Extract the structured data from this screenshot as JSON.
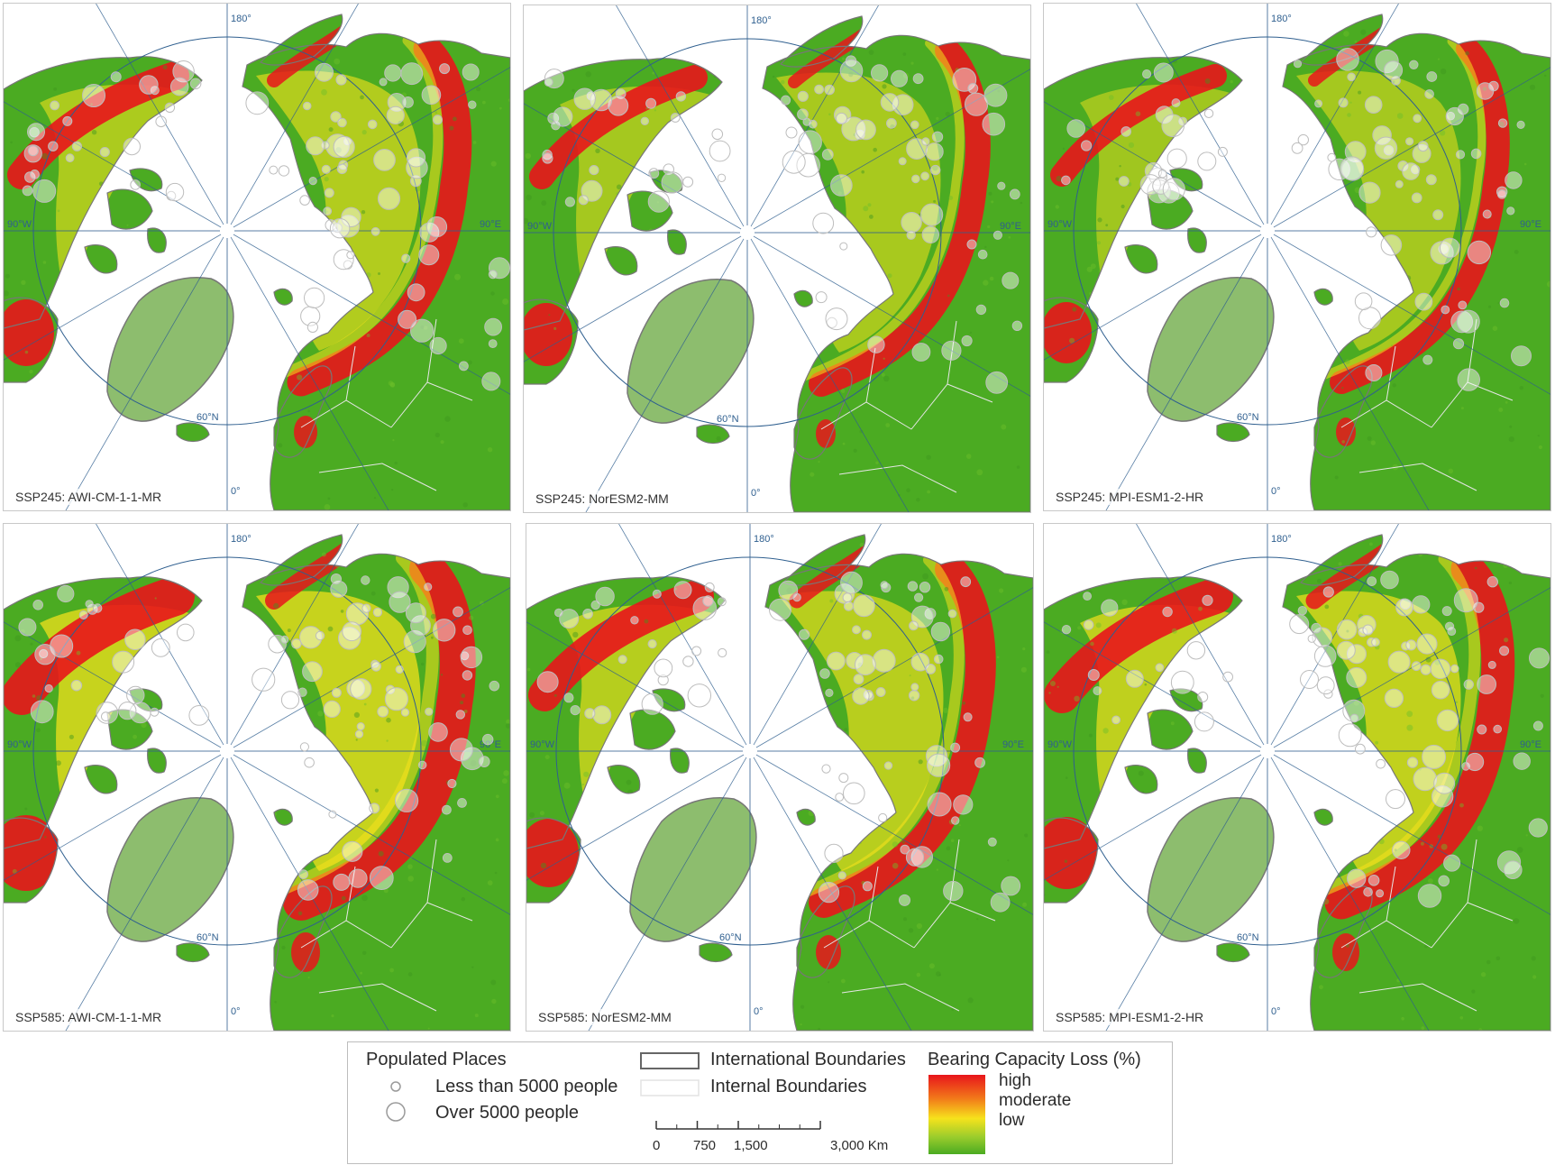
{
  "panels": [
    {
      "label": "SSP245: AWI-CM-1-1-MR",
      "scenario": "SSP245",
      "model": "AWI-CM-1-1-MR",
      "intensity": 0.55
    },
    {
      "label": "SSP245: NorESM2-MM",
      "scenario": "SSP245",
      "model": "NorESM2-MM",
      "intensity": 0.45
    },
    {
      "label": "SSP245: MPI-ESM1-2-HR",
      "scenario": "SSP245",
      "model": "MPI-ESM1-2-HR",
      "intensity": 0.4
    },
    {
      "label": "SSP585: AWI-CM-1-1-MR",
      "scenario": "SSP585",
      "model": "AWI-CM-1-1-MR",
      "intensity": 0.85
    },
    {
      "label": "SSP585: NorESM2-MM",
      "scenario": "SSP585",
      "model": "NorESM2-MM",
      "intensity": 0.65
    },
    {
      "label": "SSP585: MPI-ESM1-2-HR",
      "scenario": "SSP585",
      "model": "MPI-ESM1-2-HR",
      "intensity": 0.75
    }
  ],
  "graticule": {
    "lon_180": "180°",
    "lon_0": "0°",
    "lon_90W": "90°W",
    "lon_90E": "90°E",
    "lat_60N": "60°N"
  },
  "legend": {
    "populated_places_title": "Populated Places",
    "small_place": "Less than 5000 people",
    "large_place": "Over 5000 people",
    "international_boundaries": "International Boundaries",
    "internal_boundaries": "Internal Boundaries",
    "bearing_title": "Bearing Capacity Loss (%)",
    "gradient": [
      "high",
      "moderate",
      "low"
    ],
    "scale_ticks": [
      "0",
      "750",
      "1,500",
      "3,000 Km"
    ],
    "scale_values_km": [
      0,
      750,
      1500,
      3000
    ]
  },
  "colors": {
    "high": "#e8151b",
    "moderate": "#f6e21c",
    "low": "#4bab22",
    "greenland": "#8dbd6e",
    "ocean": "#ffffff",
    "graticule": "#2f5f8f",
    "land_outline": "#777777"
  }
}
